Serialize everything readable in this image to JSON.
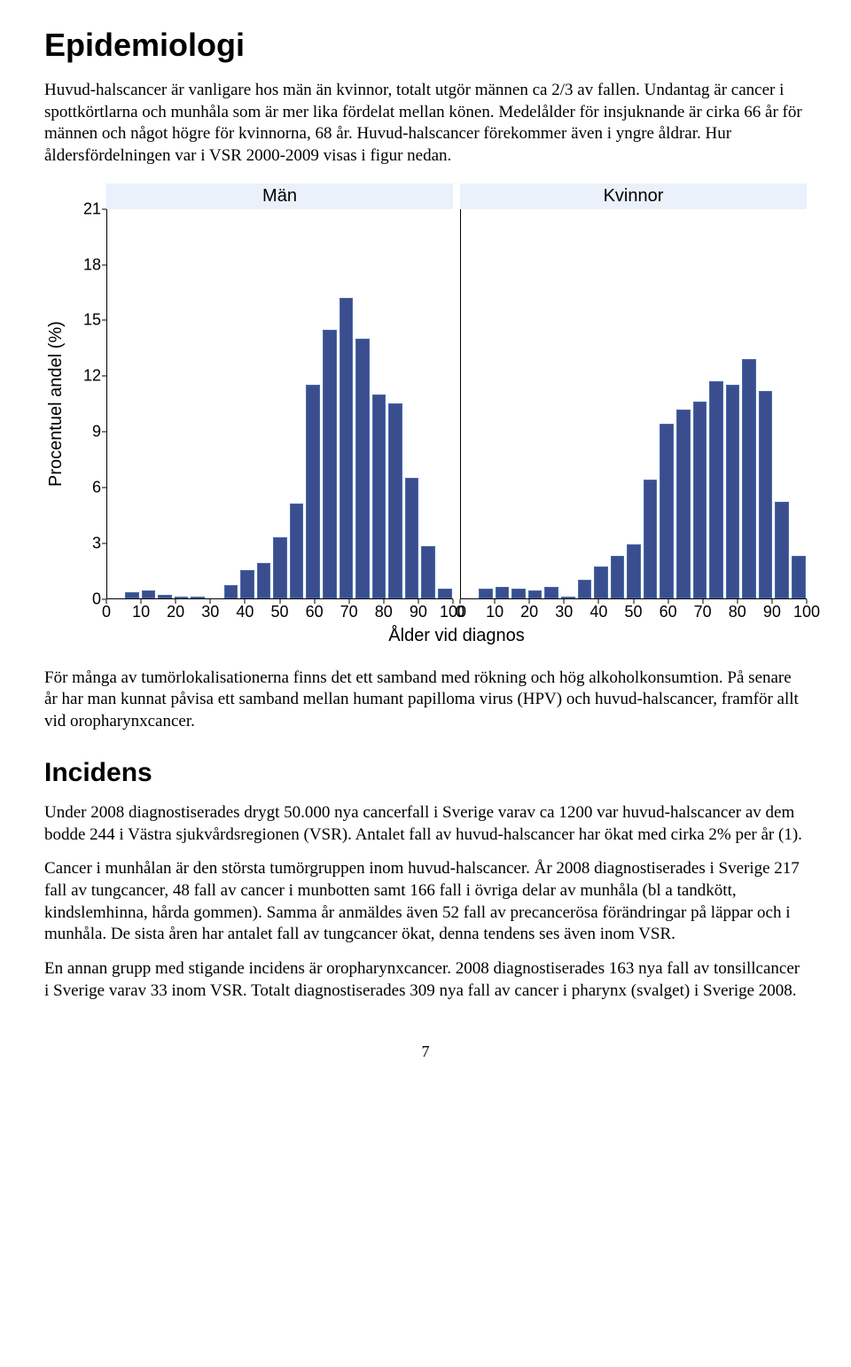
{
  "heading1": "Epidemiologi",
  "para1": "Huvud-halscancer är vanligare hos män än kvinnor, totalt utgör männen ca 2/3 av fallen. Undantag är cancer i spottkörtlarna och munhåla som är mer lika fördelat mellan könen. Medelålder för insjuknande är cirka 66 år för männen och något högre för kvinnorna, 68 år. Huvud-halscancer förekommer även i yngre åldrar. Hur åldersfördelningen var i VSR 2000-2009 visas i figur nedan.",
  "chart": {
    "type": "histogram",
    "facets": [
      "Män",
      "Kvinnor"
    ],
    "ylabel": "Procentuel andel (%)",
    "xlabel": "Ålder vid diagnos",
    "ylim": [
      0,
      21
    ],
    "yticks": [
      0,
      3,
      6,
      9,
      12,
      15,
      18,
      21
    ],
    "xlim": [
      0,
      100
    ],
    "xticks": [
      0,
      10,
      20,
      30,
      40,
      50,
      60,
      70,
      80,
      90,
      100
    ],
    "bar_color": "#3a4e8f",
    "bar_border": "#4a6aa8",
    "facet_bg": "#eaf1fb",
    "background": "#ffffff",
    "series": {
      "Män": [
        0,
        0.3,
        0.4,
        0.2,
        0.1,
        0.1,
        0,
        0.7,
        1.5,
        1.9,
        3.3,
        5.1,
        11.5,
        14.5,
        16.2,
        14.0,
        11.0,
        10.5,
        6.5,
        2.8,
        0.5
      ],
      "Kvinnor": [
        0,
        0.5,
        0.6,
        0.5,
        0.4,
        0.6,
        0.1,
        1.0,
        1.7,
        2.3,
        2.9,
        6.4,
        9.4,
        10.2,
        10.6,
        11.7,
        11.5,
        12.9,
        11.2,
        5.2,
        2.3
      ]
    },
    "tick_fontsize": 18,
    "label_fontsize": 20
  },
  "para2": "För många av tumörlokalisationerna finns det ett samband med rökning och hög alkoholkonsumtion. På senare år har man kunnat påvisa ett samband mellan humant papilloma virus (HPV) och huvud-halscancer, framför allt vid oropharynxcancer.",
  "heading2": "Incidens",
  "para3": "Under 2008 diagnostiserades drygt 50.000 nya cancerfall i Sverige varav ca 1200 var huvud-halscancer av dem bodde 244 i Västra sjukvårdsregionen (VSR). Antalet fall av huvud-halscancer har ökat med cirka 2% per år (1).",
  "para4": "Cancer i munhålan är den största tumörgruppen inom huvud-halscancer. År 2008 diagnostiserades i Sverige 217 fall av tungcancer, 48 fall av cancer i munbotten samt 166 fall i övriga delar av munhåla (bl a tandkött, kindslemhinna, hårda gommen). Samma år anmäldes även 52 fall av precancerösa förändringar på läppar och i munhåla. De sista åren har antalet fall av tungcancer ökat, denna tendens ses även inom VSR.",
  "para5": "En annan grupp med stigande incidens är oropharynxcancer. 2008 diagnostiserades 163 nya fall av tonsillcancer i Sverige varav 33 inom VSR. Totalt diagnostiserades 309 nya fall av cancer i pharynx (svalget) i Sverige 2008.",
  "page_number": "7"
}
